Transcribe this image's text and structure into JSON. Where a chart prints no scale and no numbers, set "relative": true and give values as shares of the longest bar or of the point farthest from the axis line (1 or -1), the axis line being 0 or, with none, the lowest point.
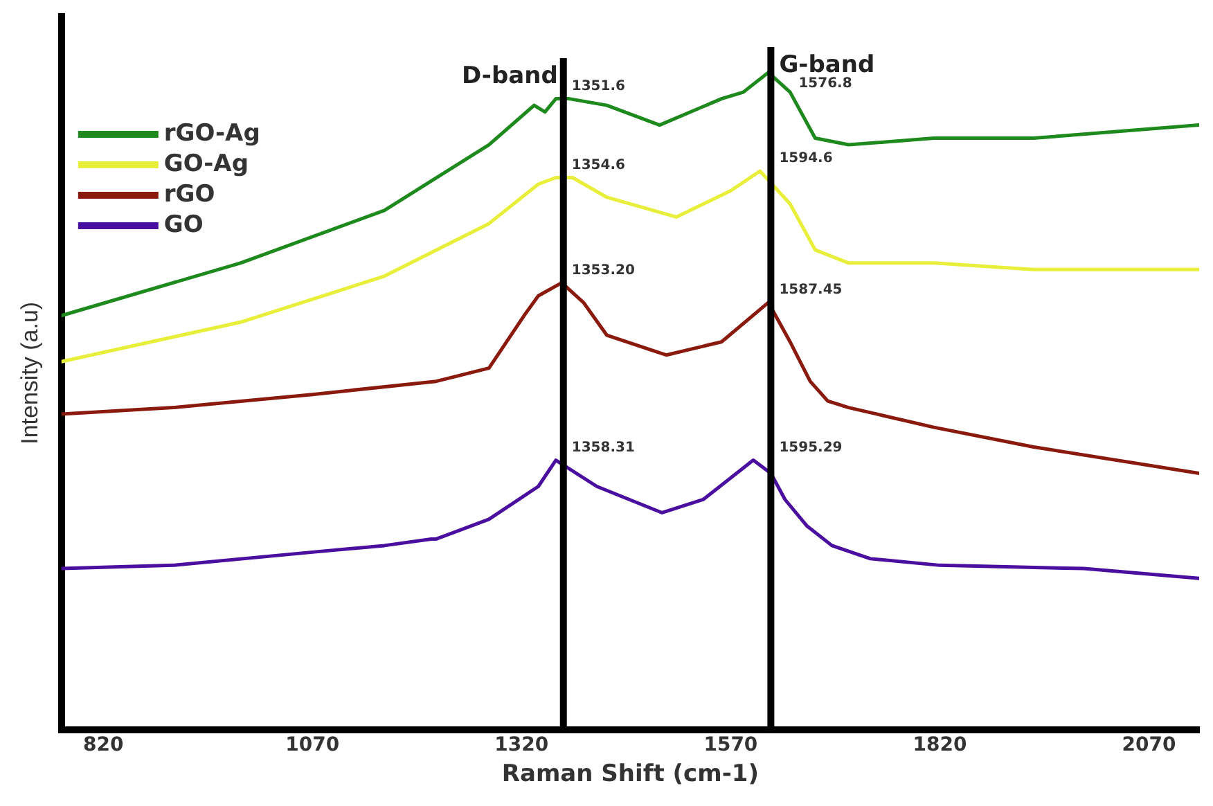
{
  "chart_data": {
    "type": "line",
    "xlabel": "Raman Shift (cm-1)",
    "ylabel": "Intensity (a.u)",
    "relative": true,
    "xlim": [
      770,
      2130
    ],
    "xticks": [
      820,
      1070,
      1320,
      1570,
      1820,
      2070
    ],
    "grid": false,
    "legend": "top left",
    "marker": "none",
    "line_style": "solid",
    "series": [
      {
        "name": "rGO-Ag",
        "color": "#1e8a1e",
        "x": [
          770,
          984,
          1156,
          1281,
          1335,
          1348,
          1361,
          1377,
          1422,
          1485,
          1559,
          1585,
          1615,
          1641,
          1671,
          1711,
          1813,
          1932,
          2130
        ],
        "values": [
          0.63,
          0.71,
          0.79,
          0.89,
          0.95,
          0.94,
          0.96,
          0.96,
          0.95,
          0.92,
          0.96,
          0.97,
          1,
          0.97,
          0.9,
          0.89,
          0.9,
          0.9,
          0.92
        ]
      },
      {
        "name": "GO-Ag",
        "color": "#e8ef3a",
        "x": [
          770,
          984,
          1156,
          1281,
          1340,
          1361,
          1381,
          1422,
          1505,
          1570,
          1605,
          1641,
          1671,
          1711,
          1813,
          1932,
          2130
        ],
        "values": [
          0.56,
          0.62,
          0.69,
          0.77,
          0.83,
          0.84,
          0.84,
          0.81,
          0.78,
          0.82,
          0.85,
          0.8,
          0.73,
          0.71,
          0.71,
          0.7,
          0.7
        ]
      },
      {
        "name": "rGO",
        "color": "#8b1a0e",
        "x": [
          770,
          904,
          1070,
          1218,
          1281,
          1323,
          1340,
          1368,
          1394,
          1422,
          1493,
          1559,
          1615,
          1641,
          1665,
          1686,
          1711,
          1813,
          1932,
          2130
        ],
        "values": [
          0.48,
          0.49,
          0.51,
          0.53,
          0.55,
          0.63,
          0.66,
          0.68,
          0.65,
          0.6,
          0.57,
          0.59,
          0.65,
          0.59,
          0.53,
          0.5,
          0.49,
          0.46,
          0.43,
          0.39
        ]
      },
      {
        "name": "GO",
        "color": "#4b0fa0",
        "x": [
          770,
          904,
          1070,
          1156,
          1212,
          1218,
          1281,
          1340,
          1361,
          1410,
          1488,
          1537,
          1597,
          1618,
          1635,
          1661,
          1691,
          1737,
          1820,
          1992,
          2130
        ],
        "values": [
          0.245,
          0.25,
          0.27,
          0.28,
          0.29,
          0.29,
          0.32,
          0.37,
          0.41,
          0.37,
          0.33,
          0.35,
          0.41,
          0.39,
          0.35,
          0.31,
          0.28,
          0.26,
          0.25,
          0.245,
          0.23
        ]
      }
    ],
    "ref_lines": [
      {
        "axis": "x",
        "value": 1370,
        "label": "D-band",
        "color": "#000000"
      },
      {
        "axis": "x",
        "value": 1618,
        "label": "G-band",
        "color": "#000000"
      }
    ],
    "annotations": [
      {
        "text": "1351.6",
        "x": 1361,
        "y": 0.96
      },
      {
        "text": "1576.8",
        "x": 1615,
        "y": 1
      },
      {
        "text": "1354.6",
        "x": 1361,
        "y": 0.84
      },
      {
        "text": "1594.6",
        "x": 1605,
        "y": 0.85
      },
      {
        "text": "1353.20",
        "x": 1368,
        "y": 0.68
      },
      {
        "text": "1587.45",
        "x": 1615,
        "y": 0.65
      },
      {
        "text": "1358.31",
        "x": 1361,
        "y": 0.41
      },
      {
        "text": "1595.29",
        "x": 1597,
        "y": 0.41
      }
    ]
  }
}
